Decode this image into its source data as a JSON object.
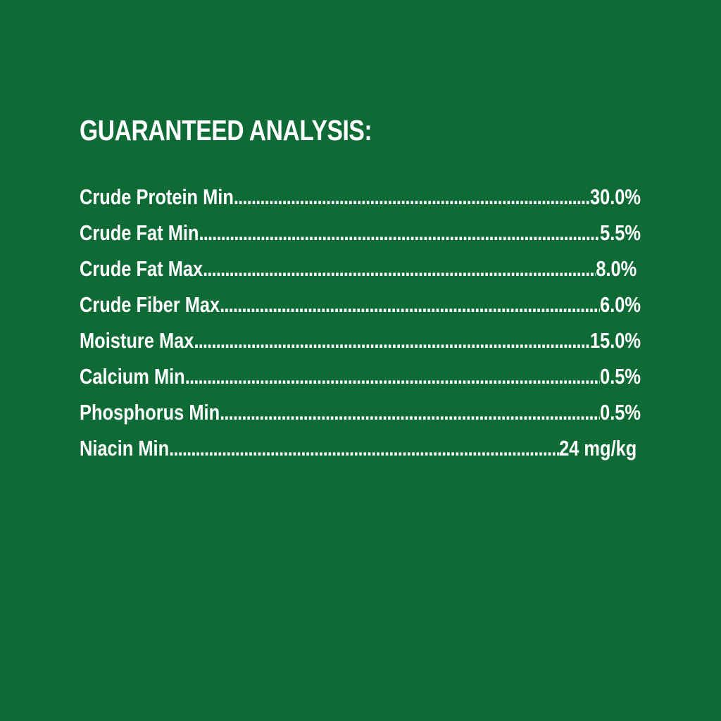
{
  "title": "GUARANTEED ANALYSIS:",
  "colors": {
    "background": "#0f6b35",
    "text": "#ffffff"
  },
  "rows": [
    {
      "label": "Crude Protein Min",
      "value": "30.0%"
    },
    {
      "label": "Crude Fat Min",
      "value": "5.5%"
    },
    {
      "label": "Crude Fat Max",
      "value": "8.0%"
    },
    {
      "label": "Crude Fiber Max",
      "value": "6.0%"
    },
    {
      "label": "Moisture Max",
      "value": "15.0%"
    },
    {
      "label": "Calcium Min",
      "value": "0.5%"
    },
    {
      "label": "Phosphorus Min",
      "value": "0.5%"
    },
    {
      "label": "Niacin Min",
      "value": "24 mg/kg"
    }
  ]
}
